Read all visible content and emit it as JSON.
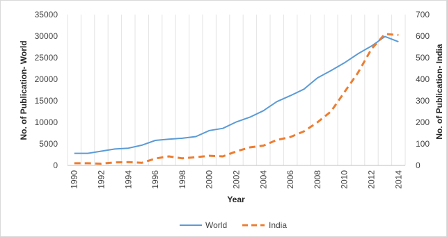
{
  "chart_data": {
    "type": "line",
    "xlabel": "Year",
    "ylabel_left": "No. of Publication- World",
    "ylabel_right": "No. of Publication- India",
    "x": [
      1990,
      1991,
      1992,
      1993,
      1994,
      1995,
      1996,
      1997,
      1998,
      1999,
      2000,
      2001,
      2002,
      2003,
      2004,
      2005,
      2006,
      2007,
      2008,
      2009,
      2010,
      2011,
      2012,
      2013,
      2014
    ],
    "x_tick_labels": [
      "1990",
      "1992",
      "1994",
      "1996",
      "1998",
      "2000",
      "2002",
      "2004",
      "2006",
      "2008",
      "2010",
      "2012",
      "2014"
    ],
    "ylim_left": [
      0,
      35000
    ],
    "yticks_left": [
      "0",
      "5000",
      "10000",
      "15000",
      "20000",
      "25000",
      "30000",
      "35000"
    ],
    "ylim_right": [
      0,
      700
    ],
    "yticks_right": [
      "0",
      "100",
      "200",
      "300",
      "400",
      "500",
      "600",
      "700"
    ],
    "grid": "vertical",
    "legend_position": "bottom",
    "series": [
      {
        "name": "World",
        "axis": "left",
        "color": "#5b9bd5",
        "style": "solid",
        "values": [
          2800,
          2800,
          3300,
          3800,
          4000,
          4700,
          5800,
          6100,
          6300,
          6700,
          8100,
          8600,
          10100,
          11200,
          12700,
          14800,
          16200,
          17700,
          20300,
          22000,
          23800,
          25900,
          27700,
          29900,
          28700
        ]
      },
      {
        "name": "India",
        "axis": "right",
        "color": "#ed7d31",
        "style": "dashed",
        "values": [
          10,
          10,
          8,
          14,
          15,
          12,
          32,
          42,
          33,
          38,
          45,
          42,
          65,
          84,
          92,
          118,
          132,
          158,
          200,
          250,
          340,
          430,
          540,
          610,
          605
        ]
      }
    ]
  }
}
